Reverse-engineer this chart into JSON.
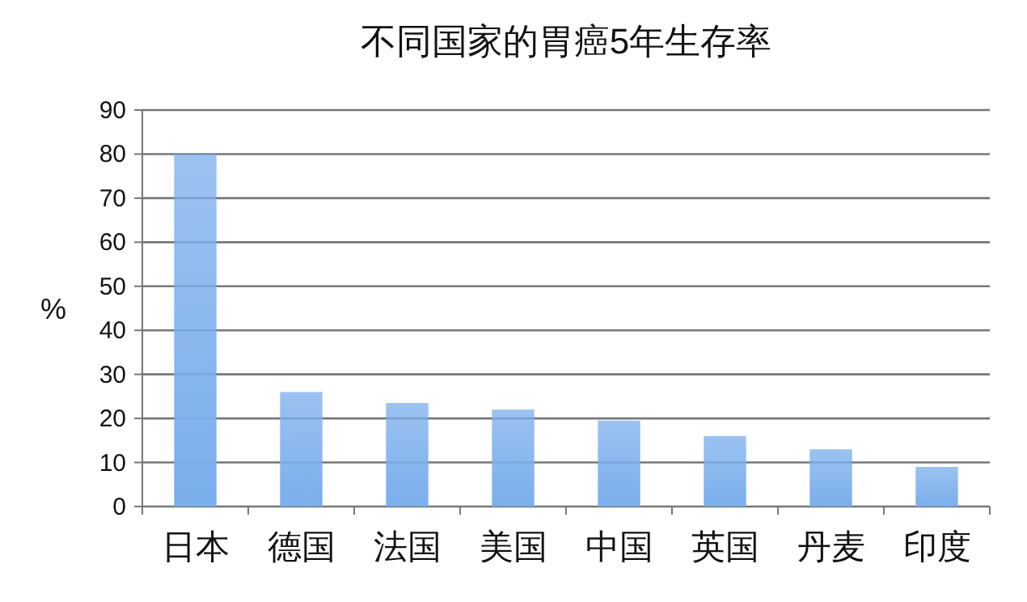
{
  "chart_data": {
    "type": "bar",
    "title": "不同国家的胃癌5年生存率",
    "ylabel": "%",
    "categories": [
      "日本",
      "德国",
      "法国",
      "美国",
      "中国",
      "英国",
      "丹麦",
      "印度"
    ],
    "values": [
      80,
      26,
      23.5,
      22,
      19.5,
      16,
      13,
      9
    ],
    "color": "#7aaeec",
    "ylim": [
      0,
      90
    ],
    "yticks": [
      0,
      10,
      20,
      30,
      40,
      50,
      60,
      70,
      80,
      90
    ],
    "grid": "y"
  }
}
